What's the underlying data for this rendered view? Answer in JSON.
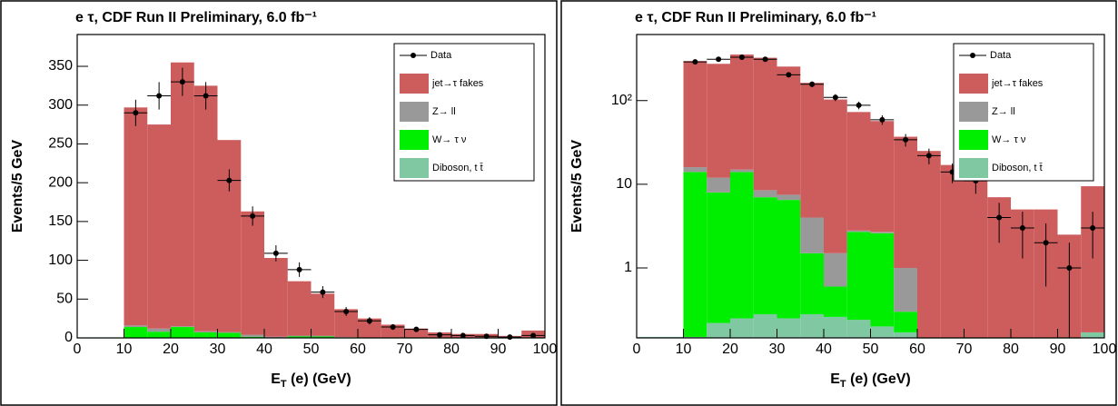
{
  "chart_data": [
    {
      "type": "histogram",
      "title": "e  τ, CDF Run II Preliminary, 6.0 fb⁻¹",
      "xlabel": {
        "main": "E",
        "sub": "T",
        "rest": " (e) (GeV)"
      },
      "ylabel": "Events/5 GeV",
      "log": false,
      "bins": [
        0,
        5,
        10,
        15,
        20,
        25,
        30,
        35,
        40,
        45,
        50,
        55,
        60,
        65,
        70,
        75,
        80,
        85,
        90,
        95,
        100
      ],
      "series": [
        {
          "name": "Diboson, t t̄",
          "color": "#80c8a2",
          "values": [
            0.15,
            0.15,
            0.15,
            0.22,
            0.25,
            0.28,
            0.25,
            0.28,
            0.26,
            0.24,
            0.2,
            0.17,
            0.12,
            0.1,
            0.1,
            0.1,
            0.1,
            0.1,
            0.1,
            0.17
          ]
        },
        {
          "name": "W→ τ ν",
          "color": "#00ee00",
          "values": [
            0,
            0,
            13.85,
            7.78,
            13.75,
            6.72,
            6.25,
            1.22,
            0.34,
            2.46,
            2.4,
            0.13,
            0,
            0,
            0,
            0,
            0,
            0,
            0,
            0
          ]
        },
        {
          "name": "Z→ ll",
          "color": "#999999",
          "values": [
            0,
            0,
            2,
            4,
            1,
            1.5,
            1,
            2.5,
            0.9,
            0.1,
            0.1,
            0.7,
            0,
            0,
            0,
            0,
            0,
            0,
            0,
            0
          ]
        },
        {
          "name": "jet→τ fakes",
          "color": "#cd5c5c",
          "values": [
            0,
            0,
            281,
            263,
            340,
            316.5,
            247.5,
            159,
            101.5,
            70.2,
            54.3,
            36,
            24.9,
            16.9,
            11.9,
            6.9,
            4.9,
            4.9,
            2.4,
            9.3
          ]
        }
      ],
      "data_points": {
        "name": "Data",
        "x": [
          12.5,
          17.5,
          22.5,
          27.5,
          32.5,
          37.5,
          42.5,
          47.5,
          52.5,
          57.5,
          62.5,
          67.5,
          72.5,
          77.5,
          82.5,
          87.5,
          92.5,
          97.5
        ],
        "values": [
          290,
          312,
          330,
          312,
          203,
          157,
          109,
          88,
          59,
          34,
          22,
          14,
          11,
          4,
          3,
          2,
          1,
          3
        ],
        "errors": [
          17,
          17.7,
          18.2,
          17.7,
          14.2,
          12.5,
          10.4,
          9.4,
          7.7,
          5.8,
          4.7,
          3.7,
          3.3,
          2,
          1.7,
          1.4,
          1,
          1.7
        ]
      },
      "xlim": [
        0,
        100
      ],
      "xticks": [
        0,
        10,
        20,
        30,
        40,
        50,
        60,
        70,
        80,
        90,
        100
      ],
      "ylim": [
        0,
        391
      ],
      "yticks": [
        0,
        50,
        100,
        150,
        200,
        250,
        300,
        350
      ]
    },
    {
      "type": "histogram",
      "title": "e  τ, CDF Run II Preliminary, 6.0 fb⁻¹",
      "xlabel": {
        "main": "E",
        "sub": "T",
        "rest": " (e) (GeV)"
      },
      "ylabel": "Events/5 GeV",
      "log": true,
      "bins": [
        0,
        5,
        10,
        15,
        20,
        25,
        30,
        35,
        40,
        45,
        50,
        55,
        60,
        65,
        70,
        75,
        80,
        85,
        90,
        95,
        100
      ],
      "series": [
        {
          "name": "Diboson, t t̄",
          "color": "#80c8a2",
          "values": [
            0.15,
            0.15,
            0.15,
            0.22,
            0.25,
            0.28,
            0.25,
            0.28,
            0.26,
            0.24,
            0.2,
            0.17,
            0.12,
            0.1,
            0.1,
            0.1,
            0.1,
            0.1,
            0.1,
            0.17
          ]
        },
        {
          "name": "W→ τ ν",
          "color": "#00ee00",
          "values": [
            0,
            0,
            13.85,
            7.78,
            13.75,
            6.72,
            6.25,
            1.22,
            0.34,
            2.46,
            2.4,
            0.13,
            0,
            0,
            0,
            0,
            0,
            0,
            0,
            0
          ]
        },
        {
          "name": "Z→ ll",
          "color": "#999999",
          "values": [
            0,
            0,
            2,
            4,
            1,
            1.5,
            1,
            2.5,
            0.9,
            0.1,
            0.1,
            0.7,
            0,
            0,
            0,
            0,
            0,
            0,
            0,
            0
          ]
        },
        {
          "name": "jet→τ fakes",
          "color": "#cd5c5c",
          "values": [
            0,
            0,
            281,
            263,
            340,
            316.5,
            247.5,
            159,
            101.5,
            70.2,
            54.3,
            36,
            24.9,
            16.9,
            11.9,
            6.9,
            4.9,
            4.9,
            2.4,
            9.3
          ]
        }
      ],
      "data_points": {
        "name": "Data",
        "x": [
          12.5,
          17.5,
          22.5,
          27.5,
          32.5,
          37.5,
          42.5,
          47.5,
          52.5,
          57.5,
          62.5,
          67.5,
          72.5,
          77.5,
          82.5,
          87.5,
          92.5,
          97.5
        ],
        "values": [
          290,
          312,
          330,
          312,
          203,
          157,
          109,
          88,
          59,
          34,
          22,
          14,
          11,
          4,
          3,
          2,
          1,
          3
        ],
        "errors": [
          17,
          17.7,
          18.2,
          17.7,
          14.2,
          12.5,
          10.4,
          9.4,
          7.7,
          5.8,
          4.7,
          3.7,
          3.3,
          2,
          1.7,
          1.4,
          1,
          1.7
        ]
      },
      "xlim": [
        0,
        100
      ],
      "xticks": [
        0,
        10,
        20,
        30,
        40,
        50,
        60,
        70,
        80,
        90,
        100
      ],
      "ylim": [
        0.146,
        616
      ],
      "yticks": [
        1,
        10,
        {
          "value": 100,
          "label": "10²"
        }
      ]
    }
  ]
}
